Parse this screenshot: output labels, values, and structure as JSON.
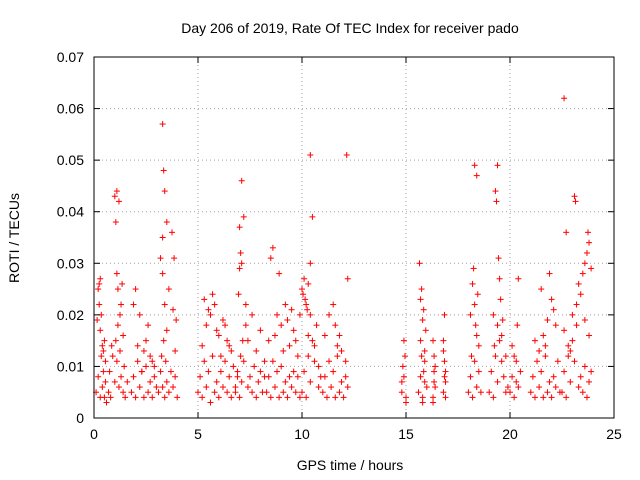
{
  "chart_data": {
    "type": "scatter",
    "title": "Day 206 of 2019, Rate Of TEC Index for receiver pado",
    "xlabel": "GPS time / hours",
    "ylabel": "ROTI / TECUs",
    "xlim": [
      0,
      25
    ],
    "ylim": [
      0,
      0.07
    ],
    "xticks": [
      0,
      5,
      10,
      15,
      20,
      25
    ],
    "xtick_labels": [
      "0",
      "5",
      "10",
      "15",
      "20",
      "25"
    ],
    "yticks": [
      0,
      0.01,
      0.02,
      0.03,
      0.04,
      0.05,
      0.06,
      0.07
    ],
    "ytick_labels": [
      "0",
      "0.01",
      "0.02",
      "0.03",
      "0.04",
      "0.05",
      "0.06",
      "0.07"
    ],
    "grid": true,
    "marker": "plus",
    "color": "#ff0000",
    "series": [
      {
        "name": "ROTI",
        "x": [
          0.1,
          0.2,
          0.3,
          0.35,
          0.4,
          0.45,
          0.5,
          0.55,
          0.6,
          0.25,
          0.3,
          0.2,
          0.15,
          0.5,
          0.45,
          0.35,
          0.55,
          0.4,
          0.25,
          0.3,
          0.7,
          0.75,
          0.8,
          0.9,
          1.0,
          1.05,
          1.1,
          1.15,
          1.2,
          1.3,
          1.4,
          1.45,
          1.5,
          1.6,
          1.0,
          1.1,
          1.2,
          1.35,
          0.85,
          1.25,
          1.05,
          1.1,
          1.15,
          1.3,
          1.4,
          1.25,
          1.8,
          1.9,
          2.0,
          2.1,
          2.2,
          2.3,
          2.4,
          2.5,
          2.6,
          2.7,
          2.8,
          2.9,
          3.0,
          2.0,
          2.2,
          2.4,
          2.6,
          2.8,
          1.9,
          2.1,
          2.3,
          2.5,
          2.7,
          2.9,
          3.1,
          3.2,
          3.25,
          3.3,
          3.35,
          3.4,
          3.45,
          3.5,
          3.6,
          3.7,
          3.8,
          3.9,
          4.0,
          3.3,
          3.35,
          3.4,
          3.3,
          3.2,
          3.5,
          3.6,
          3.75,
          3.85,
          3.95,
          3.3,
          3.4,
          3.5,
          3.8,
          3.9,
          5.0,
          5.1,
          5.2,
          5.3,
          5.4,
          5.5,
          5.6,
          5.7,
          5.8,
          5.9,
          6.0,
          6.1,
          6.2,
          6.3,
          6.4,
          6.5,
          6.6,
          6.7,
          6.8,
          6.9,
          5.2,
          5.4,
          5.6,
          5.8,
          6.0,
          6.2,
          6.4,
          6.6,
          5.3,
          5.5,
          5.7,
          5.9,
          6.1,
          6.3,
          6.5,
          6.8,
          6.9,
          7.0,
          7.05,
          7.1,
          7.15,
          7.2,
          7.3,
          7.4,
          7.5,
          7.6,
          7.7,
          7.8,
          7.9,
          8.0,
          8.1,
          8.2,
          7.0,
          7.05,
          7.1,
          7.0,
          6.95,
          7.2,
          7.3,
          7.1,
          7.4,
          7.6,
          7.8,
          8.0,
          8.2,
          8.3,
          8.4,
          8.5,
          8.6,
          8.7,
          8.8,
          8.9,
          9.0,
          9.1,
          9.2,
          9.3,
          9.4,
          9.5,
          9.6,
          9.7,
          9.8,
          9.9,
          8.4,
          8.6,
          8.8,
          9.0,
          9.2,
          9.4,
          9.6,
          9.8,
          8.5,
          8.7,
          8.9,
          9.1,
          9.3,
          9.5,
          9.7,
          10.0,
          10.1,
          10.2,
          10.3,
          10.4,
          10.5,
          10.6,
          10.7,
          10.8,
          10.9,
          10.0,
          10.1,
          10.2,
          10.3,
          10.4,
          10.5,
          10.4,
          10.4,
          10.3,
          10.6,
          10.8,
          9.9,
          10.05,
          10.15,
          10.25,
          11.0,
          11.1,
          11.2,
          11.3,
          11.4,
          11.5,
          11.6,
          11.7,
          11.8,
          11.9,
          12.0,
          12.1,
          12.2,
          11.1,
          11.3,
          11.5,
          11.7,
          11.9,
          12.1,
          11.6,
          11.8,
          12.15,
          12.2,
          14.8,
          14.9,
          15.0,
          14.85,
          14.95,
          14.9,
          14.8,
          15.0,
          15.6,
          15.7,
          15.8,
          15.9,
          16.0,
          15.65,
          15.75,
          15.85,
          15.95,
          15.7,
          15.8,
          15.9,
          15.75,
          15.85,
          15.8,
          15.7,
          15.9,
          16.3,
          16.35,
          16.4,
          16.35,
          16.3,
          16.4,
          16.35,
          16.3,
          16.8,
          16.85,
          16.9,
          16.85,
          16.8,
          16.9,
          16.85,
          16.8,
          16.9,
          18.0,
          18.1,
          18.2,
          18.3,
          18.4,
          18.5,
          18.6,
          18.1,
          18.2,
          18.3,
          18.4,
          18.5,
          18.3,
          18.4,
          18.25,
          18.35,
          18.15,
          18.45,
          19.0,
          19.1,
          19.2,
          19.3,
          19.4,
          19.5,
          19.6,
          19.7,
          19.8,
          19.9,
          19.2,
          19.4,
          19.6,
          19.8,
          19.4,
          19.3,
          19.35,
          19.45,
          19.5,
          19.55,
          19.25,
          19.65,
          20.0,
          20.1,
          20.2,
          20.3,
          20.4,
          20.5,
          20.2,
          20.3,
          20.4,
          20.1,
          20.35,
          21.0,
          21.1,
          21.2,
          21.3,
          21.4,
          21.5,
          21.6,
          21.7,
          21.8,
          21.9,
          22.0,
          22.1,
          22.2,
          22.3,
          22.4,
          21.2,
          21.4,
          21.6,
          21.8,
          22.0,
          22.2,
          21.9,
          22.1,
          21.5,
          21.7,
          22.5,
          22.6,
          22.7,
          22.8,
          22.9,
          23.0,
          23.1,
          23.2,
          23.3,
          23.4,
          23.5,
          23.6,
          23.7,
          23.8,
          23.9,
          22.6,
          22.8,
          23.0,
          23.2,
          23.4,
          23.6,
          23.8,
          22.7,
          22.6,
          23.1,
          23.15,
          23.5,
          23.7,
          23.6,
          23.8,
          23.9,
          23.3,
          23.75,
          22.9
        ],
        "y": [
          0.005,
          0.008,
          0.004,
          0.012,
          0.006,
          0.009,
          0.004,
          0.007,
          0.003,
          0.026,
          0.027,
          0.025,
          0.019,
          0.015,
          0.013,
          0.02,
          0.011,
          0.014,
          0.022,
          0.017,
          0.005,
          0.009,
          0.004,
          0.012,
          0.007,
          0.015,
          0.011,
          0.018,
          0.006,
          0.008,
          0.005,
          0.01,
          0.004,
          0.007,
          0.043,
          0.044,
          0.042,
          0.026,
          0.014,
          0.02,
          0.038,
          0.028,
          0.025,
          0.022,
          0.016,
          0.013,
          0.005,
          0.008,
          0.004,
          0.011,
          0.006,
          0.009,
          0.004,
          0.01,
          0.005,
          0.007,
          0.004,
          0.008,
          0.006,
          0.025,
          0.02,
          0.013,
          0.018,
          0.011,
          0.022,
          0.014,
          0.009,
          0.015,
          0.012,
          0.01,
          0.005,
          0.009,
          0.012,
          0.006,
          0.015,
          0.004,
          0.011,
          0.007,
          0.005,
          0.009,
          0.006,
          0.008,
          0.004,
          0.057,
          0.048,
          0.044,
          0.035,
          0.031,
          0.038,
          0.025,
          0.036,
          0.031,
          0.019,
          0.028,
          0.022,
          0.017,
          0.021,
          0.013,
          0.005,
          0.008,
          0.004,
          0.011,
          0.006,
          0.009,
          0.003,
          0.012,
          0.005,
          0.007,
          0.004,
          0.009,
          0.006,
          0.011,
          0.005,
          0.008,
          0.004,
          0.01,
          0.006,
          0.008,
          0.014,
          0.018,
          0.02,
          0.022,
          0.016,
          0.019,
          0.015,
          0.013,
          0.023,
          0.021,
          0.024,
          0.017,
          0.012,
          0.018,
          0.014,
          0.005,
          0.009,
          0.004,
          0.012,
          0.007,
          0.015,
          0.011,
          0.018,
          0.006,
          0.008,
          0.005,
          0.01,
          0.004,
          0.007,
          0.009,
          0.005,
          0.008,
          0.029,
          0.032,
          0.03,
          0.037,
          0.024,
          0.039,
          0.022,
          0.046,
          0.015,
          0.02,
          0.013,
          0.017,
          0.011,
          0.005,
          0.008,
          0.004,
          0.011,
          0.006,
          0.009,
          0.004,
          0.01,
          0.005,
          0.007,
          0.004,
          0.008,
          0.006,
          0.009,
          0.005,
          0.008,
          0.004,
          0.015,
          0.033,
          0.02,
          0.018,
          0.022,
          0.014,
          0.017,
          0.012,
          0.031,
          0.016,
          0.028,
          0.013,
          0.019,
          0.021,
          0.015,
          0.005,
          0.009,
          0.004,
          0.012,
          0.007,
          0.015,
          0.011,
          0.018,
          0.006,
          0.008,
          0.025,
          0.027,
          0.022,
          0.026,
          0.051,
          0.039,
          0.03,
          0.02,
          0.016,
          0.014,
          0.01,
          0.02,
          0.024,
          0.023,
          0.021,
          0.005,
          0.008,
          0.004,
          0.011,
          0.006,
          0.009,
          0.004,
          0.012,
          0.005,
          0.007,
          0.004,
          0.008,
          0.006,
          0.016,
          0.02,
          0.022,
          0.014,
          0.013,
          0.011,
          0.018,
          0.016,
          0.051,
          0.027,
          0.005,
          0.008,
          0.003,
          0.01,
          0.012,
          0.015,
          0.007,
          0.004,
          0.005,
          0.008,
          0.004,
          0.011,
          0.006,
          0.03,
          0.025,
          0.021,
          0.017,
          0.015,
          0.019,
          0.013,
          0.012,
          0.009,
          0.003,
          0.023,
          0.007,
          0.004,
          0.007,
          0.01,
          0.012,
          0.015,
          0.006,
          0.009,
          0.003,
          0.005,
          0.008,
          0.004,
          0.011,
          0.013,
          0.007,
          0.02,
          0.015,
          0.009,
          0.005,
          0.008,
          0.004,
          0.011,
          0.006,
          0.009,
          0.005,
          0.02,
          0.026,
          0.022,
          0.016,
          0.014,
          0.049,
          0.047,
          0.029,
          0.018,
          0.012,
          0.024,
          0.005,
          0.009,
          0.004,
          0.012,
          0.007,
          0.015,
          0.011,
          0.008,
          0.005,
          0.006,
          0.02,
          0.018,
          0.016,
          0.012,
          0.049,
          0.044,
          0.042,
          0.031,
          0.027,
          0.023,
          0.014,
          0.019,
          0.005,
          0.008,
          0.004,
          0.011,
          0.006,
          0.009,
          0.012,
          0.007,
          0.027,
          0.014,
          0.018,
          0.005,
          0.008,
          0.004,
          0.011,
          0.006,
          0.009,
          0.004,
          0.012,
          0.005,
          0.007,
          0.004,
          0.008,
          0.006,
          0.011,
          0.005,
          0.015,
          0.013,
          0.016,
          0.019,
          0.023,
          0.018,
          0.028,
          0.021,
          0.025,
          0.014,
          0.005,
          0.009,
          0.004,
          0.012,
          0.007,
          0.015,
          0.011,
          0.018,
          0.006,
          0.008,
          0.005,
          0.01,
          0.004,
          0.007,
          0.009,
          0.017,
          0.014,
          0.02,
          0.022,
          0.024,
          0.019,
          0.016,
          0.036,
          0.062,
          0.043,
          0.042,
          0.028,
          0.032,
          0.03,
          0.034,
          0.029,
          0.026,
          0.036,
          0.013
        ]
      }
    ]
  }
}
